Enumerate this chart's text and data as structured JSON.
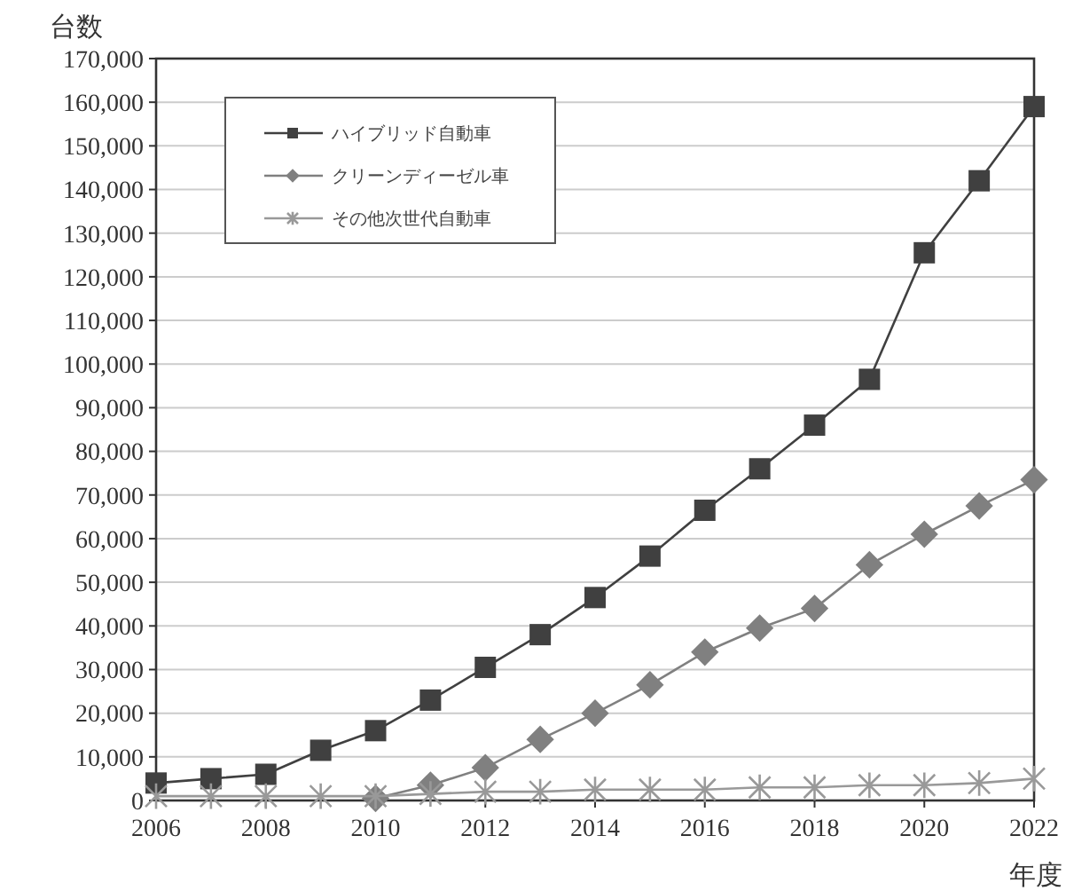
{
  "chart_data": {
    "type": "line",
    "xlabel": "年度",
    "ylabel": "台数",
    "x": [
      2006,
      2007,
      2008,
      2009,
      2010,
      2011,
      2012,
      2013,
      2014,
      2015,
      2016,
      2017,
      2018,
      2019,
      2020,
      2021,
      2022
    ],
    "series": [
      {
        "name": "ハイブリッド自動車",
        "color": "#404040",
        "marker": "square",
        "values": [
          4000,
          5000,
          6000,
          11500,
          16000,
          23000,
          30500,
          38000,
          46500,
          56000,
          66500,
          76000,
          86000,
          96500,
          125500,
          142000,
          159000
        ]
      },
      {
        "name": "クリーンディーゼル車",
        "color": "#808080",
        "marker": "diamond",
        "values": [
          null,
          null,
          null,
          null,
          500,
          3500,
          7500,
          14000,
          20000,
          26500,
          34000,
          39500,
          44000,
          54000,
          61000,
          67500,
          73500
        ]
      },
      {
        "name": "その他次世代自動車",
        "color": "#999999",
        "marker": "cross",
        "values": [
          1000,
          1000,
          1000,
          1000,
          1000,
          1500,
          2000,
          2000,
          2500,
          2500,
          2500,
          3000,
          3000,
          3500,
          3500,
          4000,
          5000
        ]
      }
    ],
    "xlim": [
      2006,
      2022
    ],
    "xticks": [
      2006,
      2008,
      2010,
      2012,
      2014,
      2016,
      2018,
      2020,
      2022
    ],
    "ylim": [
      0,
      170000
    ],
    "yticks": [
      0,
      {
        "value": 10000,
        "label": "10,000"
      },
      {
        "value": 20000,
        "label": "20,000"
      },
      {
        "value": 30000,
        "label": "30,000"
      },
      {
        "value": 40000,
        "label": "40,000"
      },
      {
        "value": 50000,
        "label": "50,000"
      },
      {
        "value": 60000,
        "label": "60,000"
      },
      {
        "value": 70000,
        "label": "70,000"
      },
      {
        "value": 80000,
        "label": "80,000"
      },
      {
        "value": 90000,
        "label": "90,000"
      },
      {
        "value": 100000,
        "label": "100,000"
      },
      {
        "value": 110000,
        "label": "110,000"
      },
      {
        "value": 120000,
        "label": "120,000"
      },
      {
        "value": 130000,
        "label": "130,000"
      },
      {
        "value": 140000,
        "label": "140,000"
      },
      {
        "value": 150000,
        "label": "150,000"
      },
      {
        "value": 160000,
        "label": "160,000"
      },
      {
        "value": 170000,
        "label": "170,000"
      }
    ],
    "grid": "y",
    "legend": "top left",
    "line_style": "solid"
  }
}
